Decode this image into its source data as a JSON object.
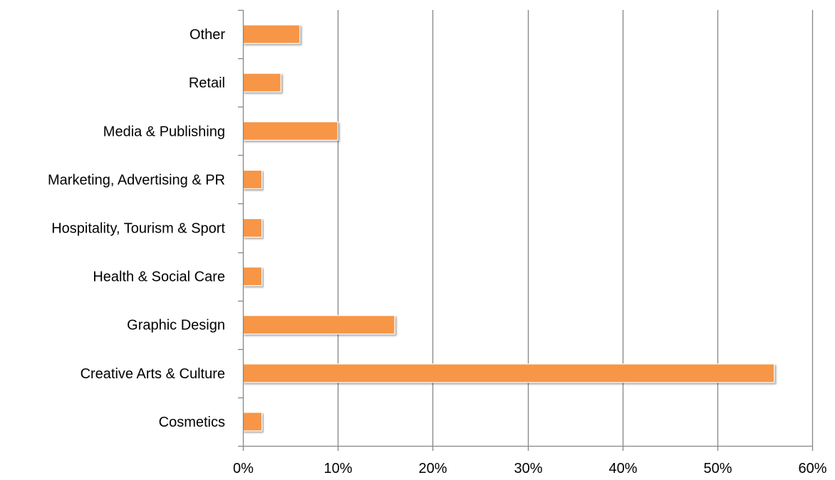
{
  "chart_data": {
    "type": "bar",
    "orientation": "horizontal",
    "categories": [
      "Other",
      "Retail",
      "Media & Publishing",
      "Marketing, Advertising & PR",
      "Hospitality, Tourism & Sport",
      "Health & Social Care",
      "Graphic Design",
      "Creative Arts & Culture",
      "Cosmetics"
    ],
    "values": [
      6,
      4,
      10,
      2,
      2,
      2,
      16,
      56,
      2
    ],
    "xlim": [
      0,
      60
    ],
    "xticks": [
      0,
      10,
      20,
      30,
      40,
      50,
      60
    ],
    "xtick_labels": [
      "0%",
      "10%",
      "20%",
      "30%",
      "40%",
      "50%",
      "60%"
    ],
    "title": "",
    "xlabel": "",
    "ylabel": "",
    "grid": "vertical",
    "legend": "none",
    "colors": {
      "bar": "#F79646",
      "grid": "#868686",
      "axis": "#868686",
      "text": "#000000"
    }
  }
}
